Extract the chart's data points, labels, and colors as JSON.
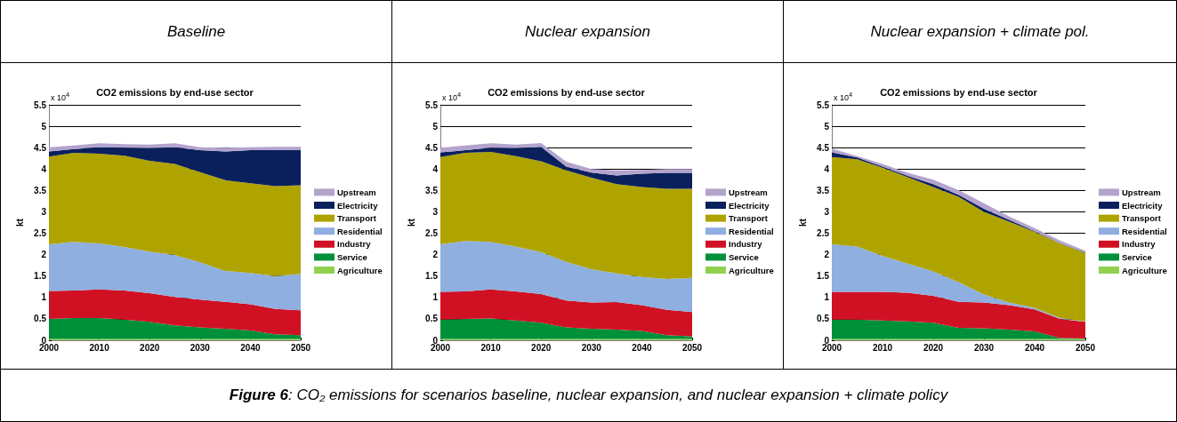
{
  "chart_data": [
    {
      "type": "area",
      "title": "Baseline",
      "subtitle": "CO2 emissions by end-use sector",
      "ylabel": "kt",
      "annotations": [
        "x 10$^{4}$"
      ],
      "stacked": true,
      "grid": "y",
      "legend": "right",
      "x": [
        2000,
        2005,
        2010,
        2015,
        2020,
        2025,
        2030,
        2035,
        2040,
        2045,
        2050
      ],
      "xlim": [
        2000,
        2050
      ],
      "xticks": [
        2000,
        2010,
        2020,
        2030,
        2040,
        2050
      ],
      "ylim": [
        0,
        5.5
      ],
      "yticks": [
        0,
        0.5,
        1,
        1.5,
        2,
        2.5,
        3,
        3.5,
        4,
        4.5,
        5,
        5.5
      ],
      "series": [
        {
          "name": "Agriculture",
          "color": "#92d050",
          "values": [
            0.03,
            0.03,
            0.03,
            0.03,
            0.03,
            0.03,
            0.03,
            0.03,
            0.03,
            0.03,
            0.03
          ]
        },
        {
          "name": "Service",
          "color": "#00903a",
          "values": [
            0.47,
            0.49,
            0.49,
            0.45,
            0.4,
            0.32,
            0.27,
            0.24,
            0.2,
            0.11,
            0.09
          ]
        },
        {
          "name": "Industry",
          "color": "#d01124",
          "values": [
            0.65,
            0.64,
            0.67,
            0.68,
            0.67,
            0.66,
            0.65,
            0.63,
            0.61,
            0.59,
            0.58
          ]
        },
        {
          "name": "Residential",
          "color": "#8eafdf",
          "values": [
            1.09,
            1.14,
            1.07,
            1.02,
            0.97,
            0.98,
            0.87,
            0.72,
            0.73,
            0.77,
            0.85
          ]
        },
        {
          "name": "Transport",
          "color": "#afa300",
          "values": [
            2.05,
            2.08,
            2.1,
            2.13,
            2.12,
            2.13,
            2.11,
            2.12,
            2.1,
            2.1,
            2.07
          ]
        },
        {
          "name": "Electricity",
          "color": "#0a205c",
          "values": [
            0.12,
            0.09,
            0.15,
            0.19,
            0.3,
            0.39,
            0.51,
            0.67,
            0.77,
            0.84,
            0.82
          ]
        },
        {
          "name": "Upstream",
          "color": "#b3a3cd",
          "values": [
            0.1,
            0.08,
            0.09,
            0.08,
            0.08,
            0.09,
            0.07,
            0.09,
            0.07,
            0.08,
            0.08
          ]
        }
      ]
    },
    {
      "type": "area",
      "title": "Nuclear expansion",
      "subtitle": "CO2 emissions by end-use sector",
      "ylabel": "kt",
      "annotations": [
        "x 10$^{4}$"
      ],
      "stacked": true,
      "grid": "y",
      "legend": "right",
      "x": [
        2000,
        2005,
        2010,
        2015,
        2020,
        2025,
        2030,
        2035,
        2040,
        2045,
        2050
      ],
      "xlim": [
        2000,
        2050
      ],
      "xticks": [
        2000,
        2010,
        2020,
        2030,
        2040,
        2050
      ],
      "ylim": [
        0,
        5.5
      ],
      "yticks": [
        0,
        0.5,
        1,
        1.5,
        2,
        2.5,
        3,
        3.5,
        4,
        4.5,
        5,
        5.5
      ],
      "series": [
        {
          "name": "Agriculture",
          "color": "#92d050",
          "values": [
            0.03,
            0.03,
            0.03,
            0.03,
            0.03,
            0.03,
            0.03,
            0.03,
            0.03,
            0.03,
            0.03
          ]
        },
        {
          "name": "Service",
          "color": "#00903a",
          "values": [
            0.45,
            0.47,
            0.48,
            0.43,
            0.38,
            0.27,
            0.24,
            0.22,
            0.19,
            0.09,
            0.06
          ]
        },
        {
          "name": "Industry",
          "color": "#d01124",
          "values": [
            0.65,
            0.64,
            0.68,
            0.68,
            0.67,
            0.63,
            0.61,
            0.64,
            0.6,
            0.59,
            0.57
          ]
        },
        {
          "name": "Residential",
          "color": "#8eafdf",
          "values": [
            1.11,
            1.18,
            1.11,
            1.05,
            0.98,
            0.9,
            0.78,
            0.67,
            0.66,
            0.72,
            0.8
          ]
        },
        {
          "name": "Transport",
          "color": "#afa300",
          "values": [
            2.04,
            2.06,
            2.1,
            2.11,
            2.12,
            2.14,
            2.14,
            2.09,
            2.1,
            2.11,
            2.08
          ]
        },
        {
          "name": "Electricity",
          "color": "#0a205c",
          "values": [
            0.11,
            0.06,
            0.1,
            0.19,
            0.34,
            0.09,
            0.12,
            0.2,
            0.31,
            0.37,
            0.37
          ]
        },
        {
          "name": "Upstream",
          "color": "#b3a3cd",
          "values": [
            0.11,
            0.11,
            0.1,
            0.08,
            0.09,
            0.11,
            0.08,
            0.12,
            0.09,
            0.09,
            0.09
          ]
        }
      ]
    },
    {
      "type": "area",
      "title": "Nuclear expansion + climate pol.",
      "subtitle": "CO2 emissions by end-use sector",
      "ylabel": "kt",
      "annotations": [
        "x 10$^{4}$",
        "Figure 6: CO₂ emissions for scenarios baseline, nuclear expansion, and nuclear expansion + climate policy"
      ],
      "stacked": true,
      "grid": "y",
      "legend": "right",
      "x": [
        2000,
        2005,
        2010,
        2015,
        2020,
        2025,
        2030,
        2035,
        2040,
        2045,
        2050
      ],
      "xlim": [
        2000,
        2050
      ],
      "xticks": [
        2000,
        2010,
        2020,
        2030,
        2040,
        2050
      ],
      "ylim": [
        0,
        5.5
      ],
      "yticks": [
        0,
        0.5,
        1,
        1.5,
        2,
        2.5,
        3,
        3.5,
        4,
        4.5,
        5,
        5.5
      ],
      "series": [
        {
          "name": "Agriculture",
          "color": "#92d050",
          "values": [
            0.03,
            0.03,
            0.03,
            0.03,
            0.03,
            0.03,
            0.03,
            0.03,
            0.03,
            0.03,
            0.03
          ]
        },
        {
          "name": "Service",
          "color": "#00903a",
          "values": [
            0.45,
            0.45,
            0.43,
            0.41,
            0.38,
            0.26,
            0.25,
            0.22,
            0.18,
            0.02,
            0.01
          ]
        },
        {
          "name": "Industry",
          "color": "#d01124",
          "values": [
            0.65,
            0.65,
            0.67,
            0.67,
            0.63,
            0.61,
            0.6,
            0.57,
            0.51,
            0.45,
            0.39
          ]
        },
        {
          "name": "Residential",
          "color": "#8eafdf",
          "values": [
            1.11,
            1.06,
            0.84,
            0.68,
            0.57,
            0.46,
            0.19,
            0.06,
            0.04,
            0.02,
            0.01
          ]
        },
        {
          "name": "Transport",
          "color": "#afa300",
          "values": [
            2.04,
            2.04,
            2.06,
            2.02,
            1.97,
            1.99,
            1.93,
            1.89,
            1.77,
            1.74,
            1.6
          ]
        },
        {
          "name": "Electricity",
          "color": "#0a205c",
          "values": [
            0.11,
            0.04,
            0.03,
            0.03,
            0.07,
            0.05,
            0.07,
            0.04,
            0.02,
            0.01,
            0.01
          ]
        },
        {
          "name": "Upstream",
          "color": "#b3a3cd",
          "values": [
            0.09,
            0.03,
            0.06,
            0.07,
            0.1,
            0.11,
            0.13,
            0.08,
            0.07,
            0.06,
            0.04
          ]
        }
      ]
    }
  ]
}
